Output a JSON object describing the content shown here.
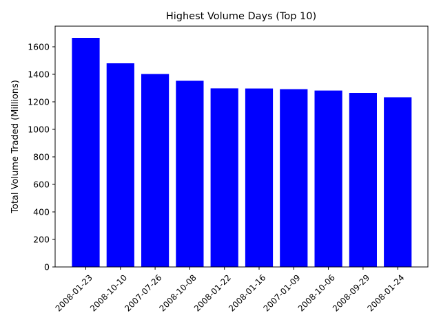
{
  "chart_data": {
    "type": "bar",
    "title": "Highest Volume Days (Top 10)",
    "xlabel": "",
    "ylabel": "Total Volume Traded (Millions)",
    "categories": [
      "2008-01-23",
      "2008-10-10",
      "2007-07-26",
      "2008-10-08",
      "2008-01-22",
      "2008-01-16",
      "2007-01-09",
      "2008-10-06",
      "2008-09-29",
      "2008-01-24"
    ],
    "values": [
      1665,
      1480,
      1402,
      1353,
      1298,
      1297,
      1292,
      1282,
      1265,
      1233
    ],
    "ylim": [
      0,
      1750
    ],
    "yticks": [
      0,
      200,
      400,
      600,
      800,
      1000,
      1200,
      1400,
      1600
    ],
    "bar_color": "#0000ff",
    "grid": false,
    "legend": "none"
  }
}
